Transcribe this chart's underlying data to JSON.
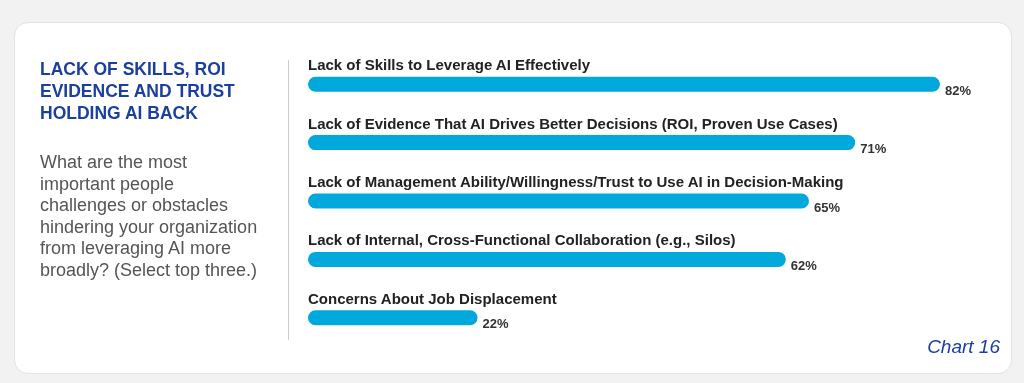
{
  "chart_data": {
    "type": "bar",
    "orientation": "horizontal",
    "title": "LACK OF SKILLS, ROI EVIDENCE AND TRUST HOLDING AI BACK",
    "subtitle": "What are the most important people challenges or obstacles hindering your organization from leveraging AI more broadly? (Select top three.)",
    "categories": [
      "Lack of Skills to Leverage AI Effectively",
      "Lack of Evidence That AI Drives Better Decisions (ROI, Proven Use Cases)",
      "Lack of Management Ability/Willingness/Trust to Use AI in Decision-Making",
      "Lack of Internal, Cross-Functional Collaboration (e.g., Silos)",
      "Concerns About Job Displacement"
    ],
    "values": [
      82,
      71,
      65,
      62,
      22
    ],
    "value_labels": [
      "82%",
      "71%",
      "65%",
      "62%",
      "22%"
    ],
    "color": "#00a8dc",
    "tick_labels": "y",
    "annotations": [
      "Chart 16"
    ]
  }
}
